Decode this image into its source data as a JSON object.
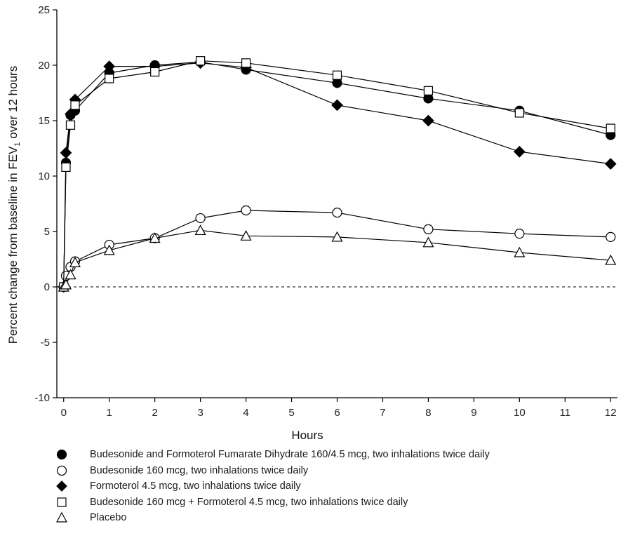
{
  "chart_data": {
    "type": "line",
    "title": "",
    "xlabel": "Hours",
    "ylabel_main": "Percent change from baseline in FEV",
    "ylabel_sub": "1",
    "ylabel_tail": " over 12 hours",
    "xlim": [
      -0.15,
      12.15
    ],
    "ylim": [
      -10,
      25
    ],
    "xticks": [
      0,
      1,
      2,
      3,
      4,
      5,
      6,
      7,
      8,
      9,
      10,
      11,
      12
    ],
    "yticks": [
      -10,
      -5,
      0,
      5,
      10,
      15,
      20,
      25
    ],
    "reference_line": 0,
    "series": [
      {
        "name": "Budesonide and Formoterol Fumarate Dihydrate 160/4.5 mcg, two inhalations twice daily",
        "marker": "filled-circle",
        "x": [
          0,
          0.05,
          0.15,
          0.25,
          1,
          2,
          3,
          4,
          6,
          8,
          10,
          12
        ],
        "y": [
          0,
          11.2,
          15.5,
          15.9,
          19.3,
          20.0,
          20.3,
          19.6,
          18.4,
          17.0,
          15.9,
          13.7
        ]
      },
      {
        "name": "Budesonide 160 mcg, two inhalations twice daily",
        "marker": "open-circle",
        "x": [
          0,
          0.05,
          0.15,
          0.25,
          1,
          2,
          3,
          4,
          6,
          8,
          10,
          12
        ],
        "y": [
          0,
          1.0,
          1.8,
          2.3,
          3.8,
          4.4,
          6.2,
          6.9,
          6.7,
          5.2,
          4.8,
          4.5
        ]
      },
      {
        "name": "Formoterol 4.5 mcg, two inhalations twice daily",
        "marker": "filled-diamond",
        "x": [
          0,
          0.05,
          0.15,
          0.25,
          1,
          2,
          3,
          4,
          6,
          8,
          10,
          12
        ],
        "y": [
          0,
          12.1,
          15.6,
          16.9,
          19.9,
          19.9,
          20.2,
          19.8,
          16.4,
          15.0,
          12.2,
          11.1
        ]
      },
      {
        "name": "Budesonide 160 mcg + Formoterol 4.5 mcg, two inhalations twice daily",
        "marker": "open-square",
        "x": [
          0,
          0.05,
          0.15,
          0.25,
          1,
          2,
          3,
          4,
          6,
          8,
          10,
          12
        ],
        "y": [
          0,
          10.8,
          14.6,
          16.4,
          18.8,
          19.4,
          20.4,
          20.2,
          19.1,
          17.7,
          15.7,
          14.3
        ]
      },
      {
        "name": "Placebo",
        "marker": "open-triangle",
        "x": [
          0,
          0.05,
          0.15,
          0.25,
          1,
          2,
          3,
          4,
          6,
          8,
          10,
          12
        ],
        "y": [
          0,
          0.2,
          1.1,
          2.2,
          3.3,
          4.4,
          5.1,
          4.6,
          4.5,
          4.0,
          3.1,
          2.4
        ]
      }
    ]
  }
}
